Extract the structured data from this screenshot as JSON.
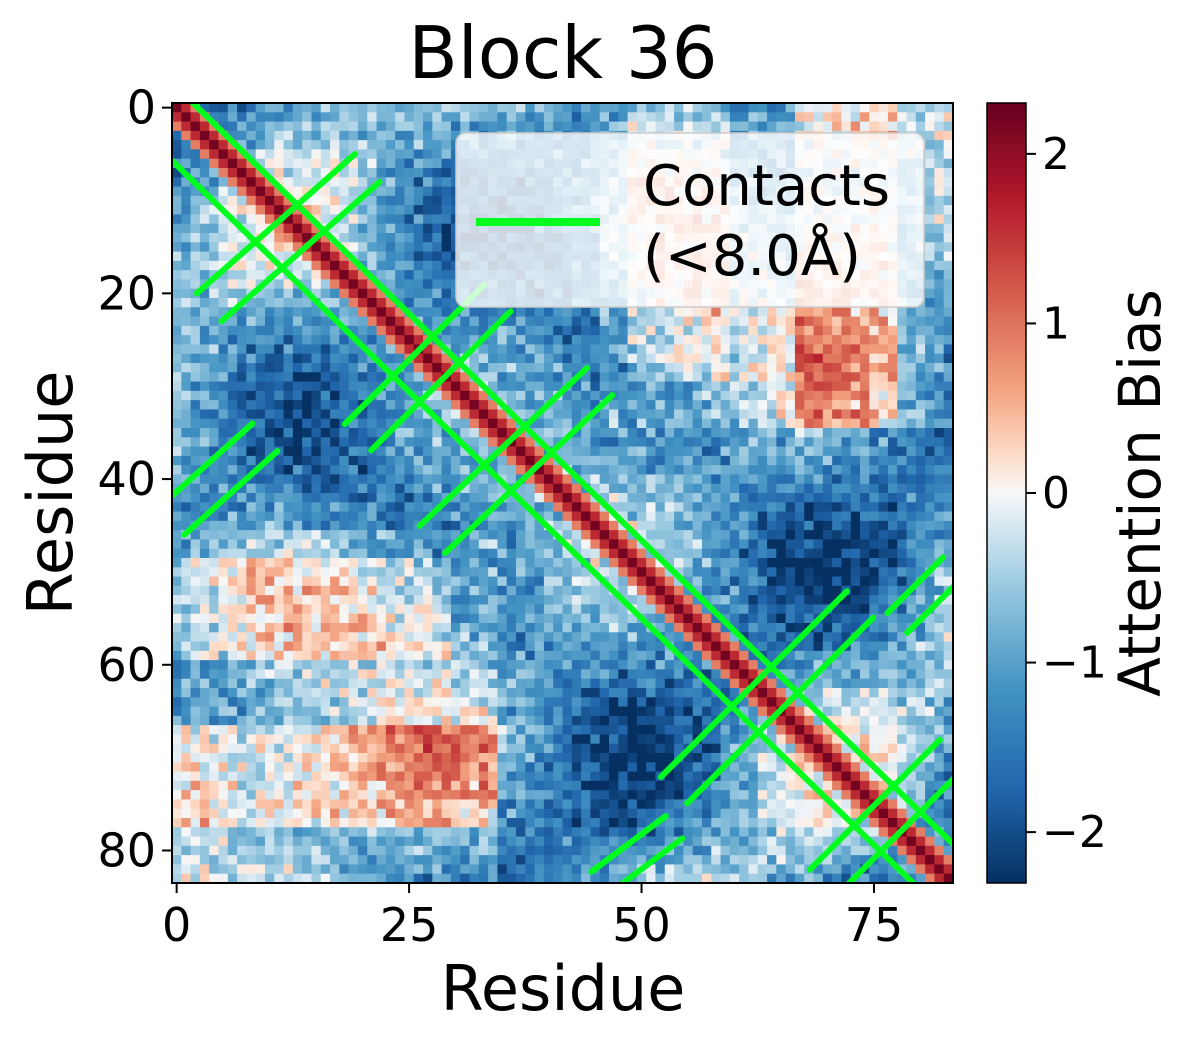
{
  "chart_data": {
    "type": "heatmap",
    "title": "Block 36",
    "xlabel": "Residue",
    "ylabel": "Residue",
    "n_residues": 84,
    "x_ticks": [
      0,
      25,
      50,
      75
    ],
    "y_ticks": [
      0,
      20,
      40,
      60,
      80
    ],
    "colorbar": {
      "label": "Attention Bias",
      "range": [
        -2.3,
        2.3
      ],
      "ticks": [
        -2,
        -1,
        0,
        1,
        2
      ],
      "tick_labels": [
        "−2",
        "−1",
        "0",
        "1",
        "2"
      ],
      "colormap": "RdBu_r"
    },
    "legend": {
      "label_line1": "Contacts",
      "label_line2": "(<8.0Å)",
      "placement": "upper right",
      "color": "#00ff1e"
    },
    "contact_cutoff_angstrom": 8.0,
    "diagonal_bias": 2.2,
    "contact_segments": [
      {
        "name": "diag-band-main",
        "from": [
          0,
          2
        ],
        "to": [
          84,
          84
        ],
        "width": 3
      },
      {
        "name": "antidiag-a",
        "from": [
          4,
          22
        ],
        "to": [
          21,
          7
        ],
        "width": 2
      },
      {
        "name": "antidiag-b",
        "from": [
          20,
          36
        ],
        "to": [
          35,
          21
        ],
        "width": 2
      },
      {
        "name": "antidiag-c",
        "from": [
          28,
          47
        ],
        "to": [
          46,
          30
        ],
        "width": 2
      },
      {
        "name": "antidiag-d",
        "from": [
          0,
          45
        ],
        "to": [
          10,
          36
        ],
        "width": 2
      },
      {
        "name": "antidiag-e",
        "from": [
          54,
          74
        ],
        "to": [
          74,
          54
        ],
        "width": 2
      },
      {
        "name": "antidiag-f",
        "from": [
          70,
          84
        ],
        "to": [
          84,
          70
        ],
        "width": 2
      },
      {
        "name": "antidiag-g",
        "from": [
          46,
          84
        ],
        "to": [
          54,
          78
        ],
        "width": 1.5
      },
      {
        "name": "antidiag-h",
        "from": [
          78,
          56
        ],
        "to": [
          84,
          50
        ],
        "width": 1.5
      }
    ],
    "colors": {
      "contact": "#00ff1e",
      "positive": "#b2182b",
      "negative": "#2166ac"
    }
  }
}
